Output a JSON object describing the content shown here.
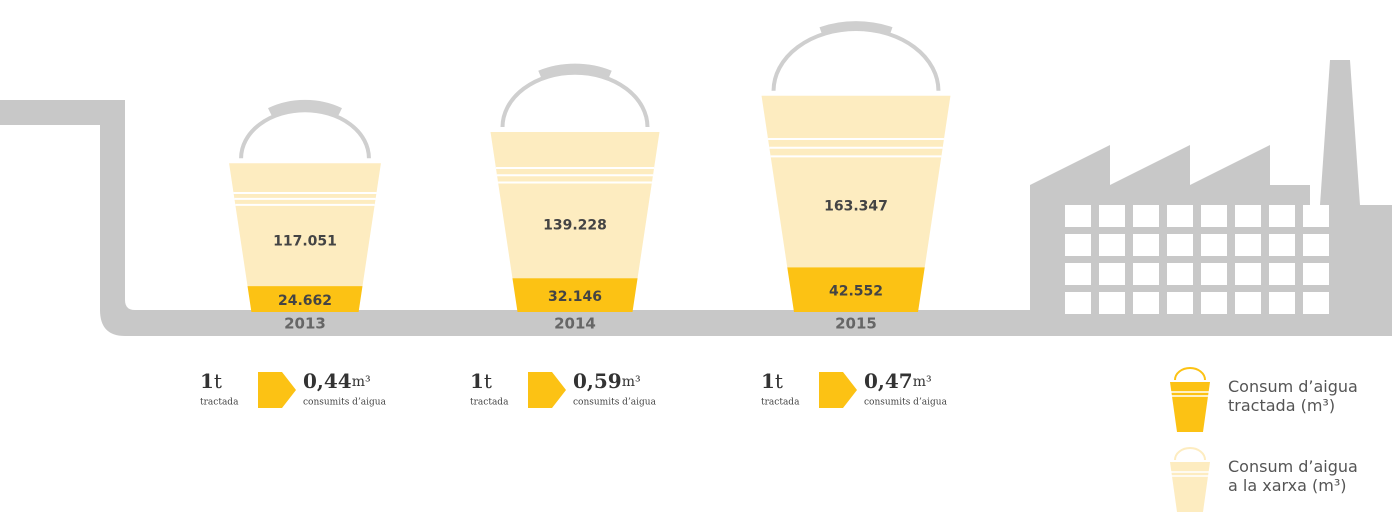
{
  "chart_data": {
    "type": "bucket",
    "categories": [
      "2013",
      "2014",
      "2015"
    ],
    "series": [
      {
        "name": "Consum d’aigua tractada (m³)",
        "color": "#fcc214",
        "values": [
          24662,
          32146,
          42552
        ],
        "value_labels": [
          "24.662",
          "32.146",
          "42.552"
        ]
      },
      {
        "name": "Consum d’aigua a la xarxa (m³)",
        "color": "#fdecc0",
        "values": [
          117051,
          139228,
          163347
        ],
        "value_labels": [
          "117.051",
          "139.228",
          "163.347"
        ]
      }
    ],
    "ratio": {
      "base": "1",
      "base_unit": "t",
      "base_caption": "tractada",
      "unit": "m³",
      "caption": "consumits d’aigua",
      "values": [
        0.44,
        0.59,
        0.47
      ],
      "value_labels": [
        "0,44",
        "0,59",
        "0,47"
      ]
    }
  }
}
